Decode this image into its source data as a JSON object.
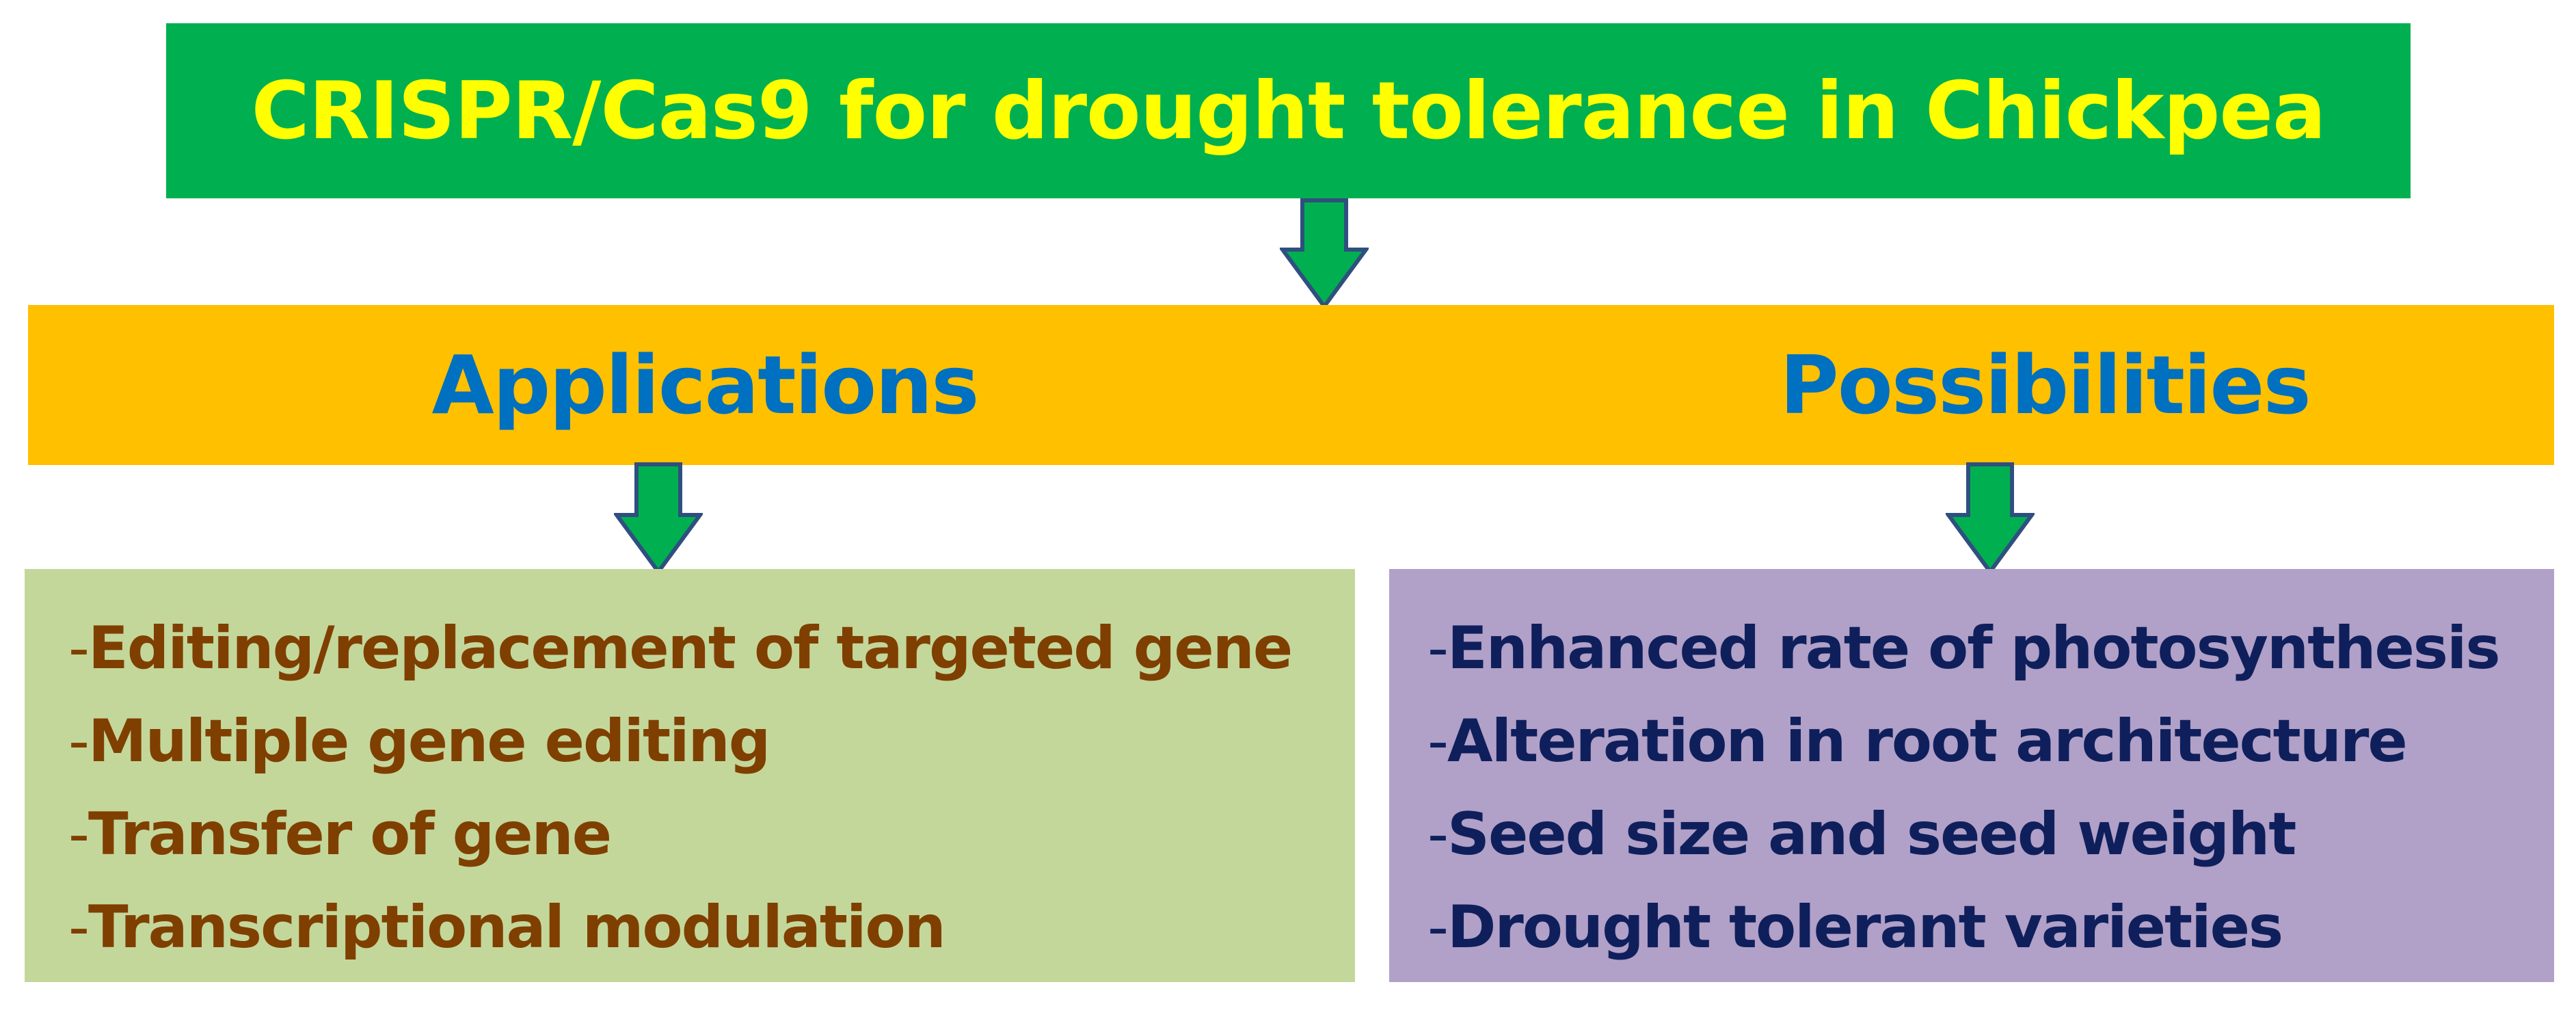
{
  "colors": {
    "title_bg": "#00b050",
    "title_text": "#ffff00",
    "band_bg": "#ffc000",
    "band_text": "#0070c0",
    "applications_bg": "#c4d79b",
    "applications_text": "#7f3f00",
    "possibilities_bg": "#b1a0c7",
    "possibilities_text": "#0f1f5c",
    "arrow_fill": "#00b050",
    "arrow_stroke": "#2f4f7f"
  },
  "title": "CRISPR/Cas9 for drought tolerance in Chickpea",
  "band": {
    "applications_label": "Applications",
    "possibilities_label": "Possibilities"
  },
  "applications": {
    "items": [
      "Editing/replacement of targeted gene",
      "Multiple gene editing",
      "Transfer of gene",
      "Transcriptional modulation"
    ]
  },
  "possibilities": {
    "items": [
      "Enhanced rate of photosynthesis",
      "Alteration in root architecture",
      "Seed size and seed weight",
      "Drought tolerant varieties"
    ]
  },
  "icons": {
    "arrow_top": "down-arrow-icon",
    "arrow_left": "down-arrow-icon",
    "arrow_right": "down-arrow-icon"
  }
}
